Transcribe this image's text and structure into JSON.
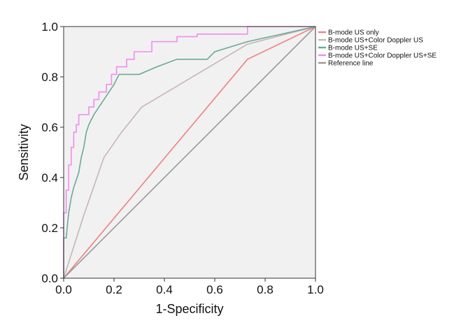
{
  "chart_data": {
    "type": "line",
    "xlabel": "1-Specificity",
    "ylabel": "Sensitivity",
    "xlim": [
      0,
      1
    ],
    "ylim": [
      0,
      1
    ],
    "xticks": [
      "0.0",
      "0.2",
      "0.4",
      "0.6",
      "0.8",
      "1.0"
    ],
    "yticks": [
      "0.0",
      "0.2",
      "0.4",
      "0.6",
      "0.8",
      "1.0"
    ],
    "grid": false,
    "background": "#f1f1f1",
    "legend_position": "top-right",
    "series": [
      {
        "name": "B-mode US only",
        "color": "#f08080",
        "x": [
          0,
          0.73,
          1.0
        ],
        "y": [
          0,
          0.87,
          1.0
        ]
      },
      {
        "name": "B-mode US+Color Doppler US",
        "color": "#c8b4b8",
        "x": [
          0,
          0.08,
          0.16,
          0.23,
          0.31,
          0.73,
          1.0
        ],
        "y": [
          0,
          0.25,
          0.48,
          0.58,
          0.68,
          0.93,
          1.0
        ],
        "step": false
      },
      {
        "name": "B-mode US+SE",
        "color": "#6aaa96",
        "x": [
          0,
          0,
          0.01,
          0.02,
          0.02,
          0.03,
          0.03,
          0.04,
          0.04,
          0.05,
          0.05,
          0.06,
          0.06,
          0.07,
          0.07,
          0.08,
          0.08,
          0.09,
          0.09,
          0.1,
          0.1,
          0.12,
          0.12,
          0.14,
          0.14,
          0.16,
          0.16,
          0.18,
          0.18,
          0.2,
          0.2,
          0.22,
          0.22,
          0.3,
          0.3,
          0.37,
          0.37,
          0.45,
          0.45,
          0.57,
          0.57,
          0.6,
          0.6,
          0.73,
          0.73,
          1.0
        ],
        "y": [
          0,
          0.16,
          0.16,
          0.26,
          0.26,
          0.32,
          0.32,
          0.36,
          0.36,
          0.39,
          0.39,
          0.42,
          0.42,
          0.48,
          0.48,
          0.52,
          0.52,
          0.58,
          0.58,
          0.61,
          0.61,
          0.65,
          0.65,
          0.68,
          0.68,
          0.71,
          0.71,
          0.74,
          0.74,
          0.77,
          0.77,
          0.81,
          0.81,
          0.81,
          0.81,
          0.84,
          0.84,
          0.87,
          0.87,
          0.87,
          0.87,
          0.9,
          0.9,
          0.94,
          0.94,
          1.0
        ]
      },
      {
        "name": "B-mode US+Color Doppler US+SE",
        "color": "#f28cf0",
        "x": [
          0,
          0,
          0.01,
          0.01,
          0.02,
          0.02,
          0.03,
          0.03,
          0.04,
          0.04,
          0.05,
          0.05,
          0.06,
          0.06,
          0.1,
          0.1,
          0.12,
          0.12,
          0.14,
          0.14,
          0.17,
          0.17,
          0.19,
          0.19,
          0.21,
          0.21,
          0.25,
          0.25,
          0.28,
          0.28,
          0.35,
          0.35,
          0.45,
          0.45,
          0.53,
          0.53,
          0.73,
          0.73,
          1.0
        ],
        "y": [
          0,
          0.26,
          0.26,
          0.35,
          0.35,
          0.45,
          0.45,
          0.52,
          0.52,
          0.58,
          0.58,
          0.61,
          0.61,
          0.65,
          0.65,
          0.68,
          0.68,
          0.71,
          0.71,
          0.74,
          0.74,
          0.77,
          0.77,
          0.81,
          0.81,
          0.84,
          0.84,
          0.87,
          0.87,
          0.9,
          0.9,
          0.94,
          0.94,
          0.96,
          0.96,
          0.97,
          0.97,
          1.0,
          1.0
        ]
      },
      {
        "name": "Reference line",
        "color": "#9a9a9a",
        "x": [
          0,
          1
        ],
        "y": [
          0,
          1
        ]
      }
    ]
  }
}
